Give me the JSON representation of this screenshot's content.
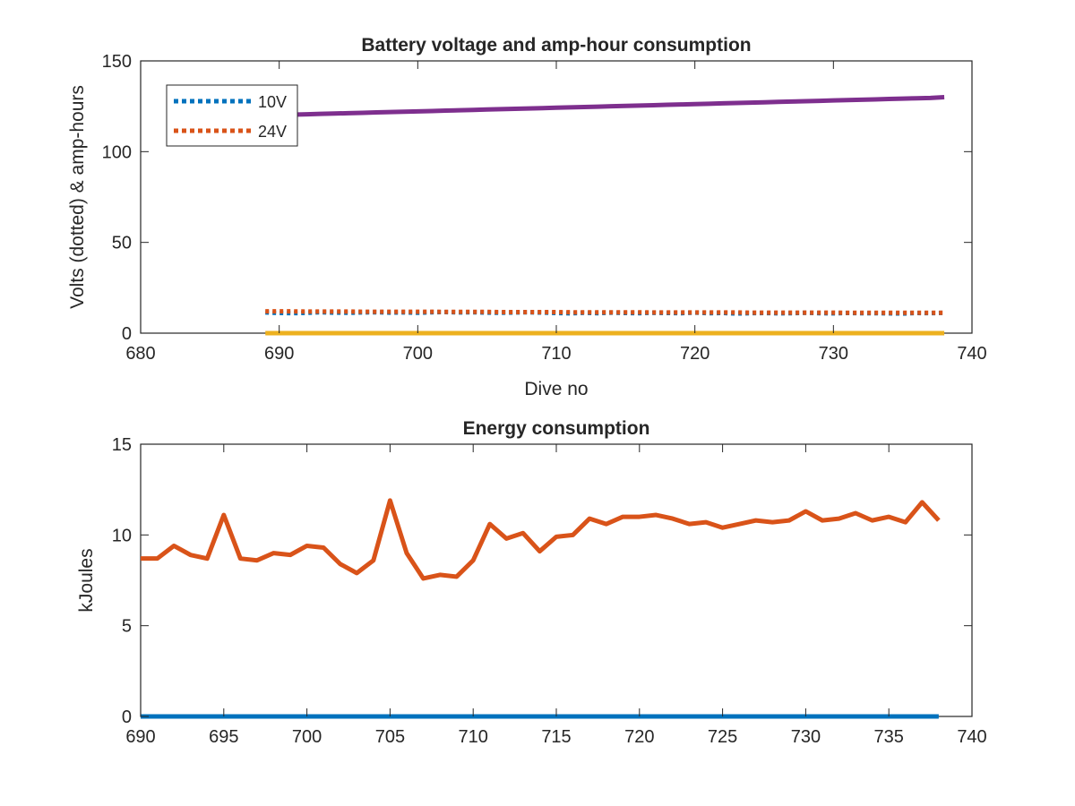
{
  "colors": {
    "blue": "#0072BD",
    "orange": "#D95319",
    "yellow": "#EDB120",
    "purple": "#7E2F8E",
    "axis": "#262626"
  },
  "chart_data": [
    {
      "type": "line",
      "title": "Battery voltage and amp-hour consumption",
      "xlabel": "Dive no",
      "ylabel": "Volts (dotted) & amp-hours",
      "xlim": [
        680,
        740
      ],
      "ylim": [
        0,
        150
      ],
      "xticks": [
        680,
        690,
        700,
        710,
        720,
        730,
        740
      ],
      "yticks": [
        0,
        50,
        100,
        150
      ],
      "legend_position": "top-left",
      "grid": false,
      "x": [
        689,
        690,
        691,
        692,
        693,
        694,
        695,
        696,
        697,
        698,
        699,
        700,
        701,
        702,
        703,
        704,
        705,
        706,
        707,
        708,
        709,
        710,
        711,
        712,
        713,
        714,
        715,
        716,
        717,
        718,
        719,
        720,
        721,
        722,
        723,
        724,
        725,
        726,
        727,
        728,
        729,
        730,
        731,
        732,
        733,
        734,
        735,
        736,
        737,
        738
      ],
      "series": [
        {
          "name": "10V",
          "color": "#0072BD",
          "style": "dotted",
          "values": [
            11.4,
            11.1,
            11.0,
            11.2,
            11.5,
            11.3,
            11.2,
            11.4,
            11.5,
            11.3,
            11.4,
            11.2,
            11.5,
            11.6,
            11.4,
            11.5,
            11.3,
            11.2,
            11.4,
            11.5,
            11.3,
            11.1,
            10.9,
            11.2,
            11.0,
            11.3,
            11.1,
            11.0,
            11.2,
            11.1,
            11.0,
            11.3,
            11.0,
            11.1,
            10.8,
            11.0,
            11.1,
            10.9,
            11.0,
            11.2,
            11.0,
            10.9,
            11.1,
            11.0,
            11.0,
            10.9,
            10.8,
            11.1,
            11.0,
            11.2
          ]
        },
        {
          "name": "24V",
          "color": "#D95319",
          "style": "dotted",
          "values": [
            12.0,
            12.0,
            12.0,
            11.9,
            11.9,
            11.9,
            11.9,
            11.8,
            11.8,
            11.8,
            11.8,
            11.8,
            11.8,
            11.7,
            11.7,
            11.7,
            11.7,
            11.6,
            11.6,
            11.6,
            11.6,
            11.6,
            11.5,
            11.5,
            11.5,
            11.5,
            11.5,
            11.5,
            11.4,
            11.4,
            11.4,
            11.4,
            11.4,
            11.4,
            11.4,
            11.3,
            11.3,
            11.3,
            11.3,
            11.3,
            11.3,
            11.3,
            11.2,
            11.2,
            11.2,
            11.2,
            11.2,
            11.2,
            11.2,
            11.2
          ]
        },
        {
          "color": "#EDB120",
          "style": "solid",
          "values": [
            0,
            0,
            0,
            0,
            0,
            0,
            0,
            0,
            0,
            0,
            0,
            0,
            0,
            0,
            0,
            0,
            0,
            0,
            0,
            0,
            0,
            0,
            0,
            0,
            0,
            0,
            0,
            0,
            0,
            0,
            0,
            0,
            0,
            0,
            0,
            0,
            0,
            0,
            0,
            0,
            0,
            0,
            0,
            0,
            0,
            0,
            0,
            0,
            0,
            0
          ]
        },
        {
          "color": "#7E2F8E",
          "style": "solid",
          "values": [
            120.0,
            120.2,
            120.4,
            120.6,
            120.8,
            121.0,
            121.2,
            121.4,
            121.6,
            121.8,
            122.0,
            122.2,
            122.4,
            122.6,
            122.8,
            123.0,
            123.2,
            123.4,
            123.6,
            123.8,
            124.0,
            124.2,
            124.4,
            124.6,
            124.8,
            125.0,
            125.2,
            125.4,
            125.6,
            125.8,
            126.0,
            126.2,
            126.4,
            126.6,
            126.8,
            127.0,
            127.2,
            127.4,
            127.6,
            127.8,
            128.0,
            128.2,
            128.4,
            128.6,
            128.8,
            129.0,
            129.2,
            129.4,
            129.6,
            130.0
          ]
        }
      ]
    },
    {
      "type": "line",
      "title": "Energy consumption",
      "xlabel": "",
      "ylabel": "kJoules",
      "xlim": [
        690,
        740
      ],
      "ylim": [
        0,
        15
      ],
      "xticks": [
        690,
        695,
        700,
        705,
        710,
        715,
        720,
        725,
        730,
        735,
        740
      ],
      "yticks": [
        0,
        5,
        10,
        15
      ],
      "grid": false,
      "x": [
        690,
        691,
        692,
        693,
        694,
        695,
        696,
        697,
        698,
        699,
        700,
        701,
        702,
        703,
        704,
        705,
        706,
        707,
        708,
        709,
        710,
        711,
        712,
        713,
        714,
        715,
        716,
        717,
        718,
        719,
        720,
        721,
        722,
        723,
        724,
        725,
        726,
        727,
        728,
        729,
        730,
        731,
        732,
        733,
        734,
        735,
        736,
        737,
        738
      ],
      "series": [
        {
          "color": "#0072BD",
          "values": [
            0,
            0,
            0,
            0,
            0,
            0,
            0,
            0,
            0,
            0,
            0,
            0,
            0,
            0,
            0,
            0,
            0,
            0,
            0,
            0,
            0,
            0,
            0,
            0,
            0,
            0,
            0,
            0,
            0,
            0,
            0,
            0,
            0,
            0,
            0,
            0,
            0,
            0,
            0,
            0,
            0,
            0,
            0,
            0,
            0,
            0,
            0,
            0,
            0
          ]
        },
        {
          "color": "#D95319",
          "values": [
            8.7,
            8.7,
            9.4,
            8.9,
            8.7,
            11.1,
            8.7,
            8.6,
            9.0,
            8.9,
            9.4,
            9.3,
            8.4,
            7.9,
            8.6,
            11.9,
            9.0,
            7.6,
            7.8,
            7.7,
            8.6,
            10.6,
            9.8,
            10.1,
            9.1,
            9.9,
            10.0,
            10.9,
            10.6,
            11.0,
            11.0,
            11.1,
            10.9,
            10.6,
            10.7,
            10.4,
            10.6,
            10.8,
            10.7,
            10.8,
            11.3,
            10.8,
            10.9,
            11.2,
            10.8,
            11.0,
            10.7,
            11.8,
            10.8
          ]
        }
      ]
    }
  ]
}
